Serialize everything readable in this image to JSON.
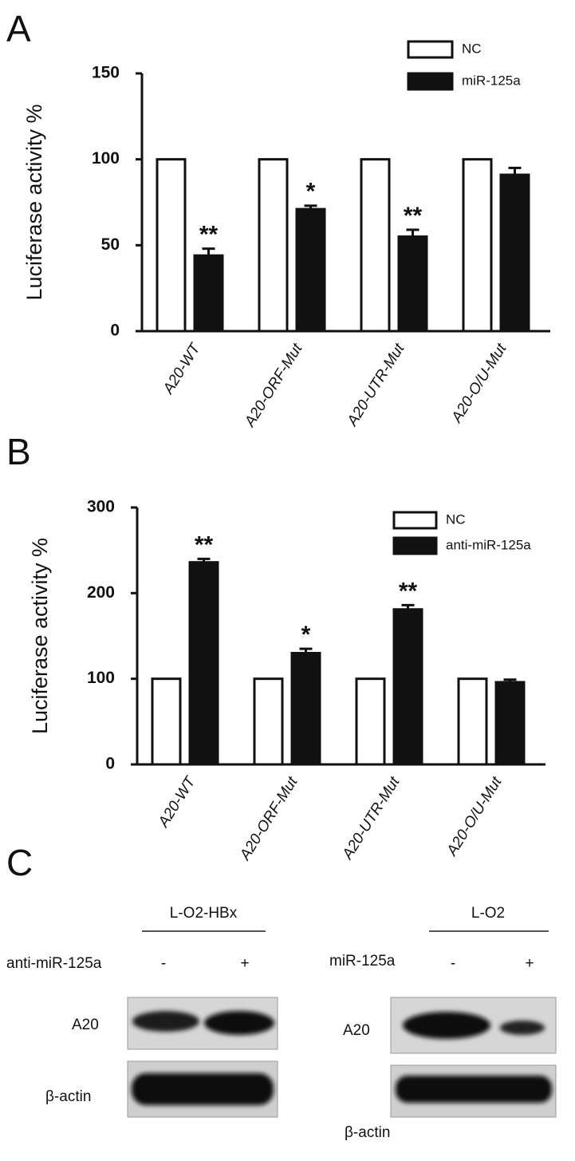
{
  "chart_data": [
    {
      "type": "bar",
      "panel": "A",
      "ylabel": "Luciferase activity %",
      "categories": [
        "A20-WT",
        "A20-ORF-Mut",
        "A20-UTR-Mut",
        "A20-O/U-Mut"
      ],
      "series": [
        {
          "name": "NC",
          "color": "#ffffff",
          "values": [
            100,
            100,
            100,
            100
          ]
        },
        {
          "name": "miR-125a",
          "color": "#111111",
          "values": [
            44,
            71,
            55,
            91
          ],
          "errors": [
            4,
            2,
            4,
            4
          ],
          "annotations": [
            "**",
            "*",
            "**",
            null
          ]
        }
      ],
      "ylim": [
        0,
        150
      ],
      "yticks": [
        0,
        50,
        100,
        150
      ],
      "grid": false,
      "legend": "top-right"
    },
    {
      "type": "bar",
      "panel": "B",
      "ylabel": "Luciferase activity %",
      "categories": [
        "A20-WT",
        "A20-ORF-Mut",
        "A20-UTR-Mut",
        "A20-O/U-Mut"
      ],
      "series": [
        {
          "name": "NC",
          "color": "#ffffff",
          "values": [
            100,
            100,
            100,
            100
          ]
        },
        {
          "name": "anti-miR-125a",
          "color": "#111111",
          "values": [
            236,
            130,
            181,
            96
          ],
          "errors": [
            4,
            5,
            5,
            3
          ],
          "annotations": [
            "**",
            "*",
            "**",
            null
          ]
        }
      ],
      "ylim": [
        0,
        300
      ],
      "yticks": [
        0,
        100,
        200,
        300
      ],
      "grid": false,
      "legend": "top-right"
    }
  ],
  "blot": {
    "panel": "C",
    "groups": [
      {
        "cell_line": "L-O2-HBx",
        "treatment": "anti-miR-125a",
        "lanes": [
          "-",
          "+"
        ],
        "rows": [
          "A20",
          "β-actin"
        ]
      },
      {
        "cell_line": "L-O2",
        "treatment": "miR-125a",
        "lanes": [
          "-",
          "+"
        ],
        "rows": [
          "A20",
          "β-actin"
        ]
      }
    ]
  }
}
